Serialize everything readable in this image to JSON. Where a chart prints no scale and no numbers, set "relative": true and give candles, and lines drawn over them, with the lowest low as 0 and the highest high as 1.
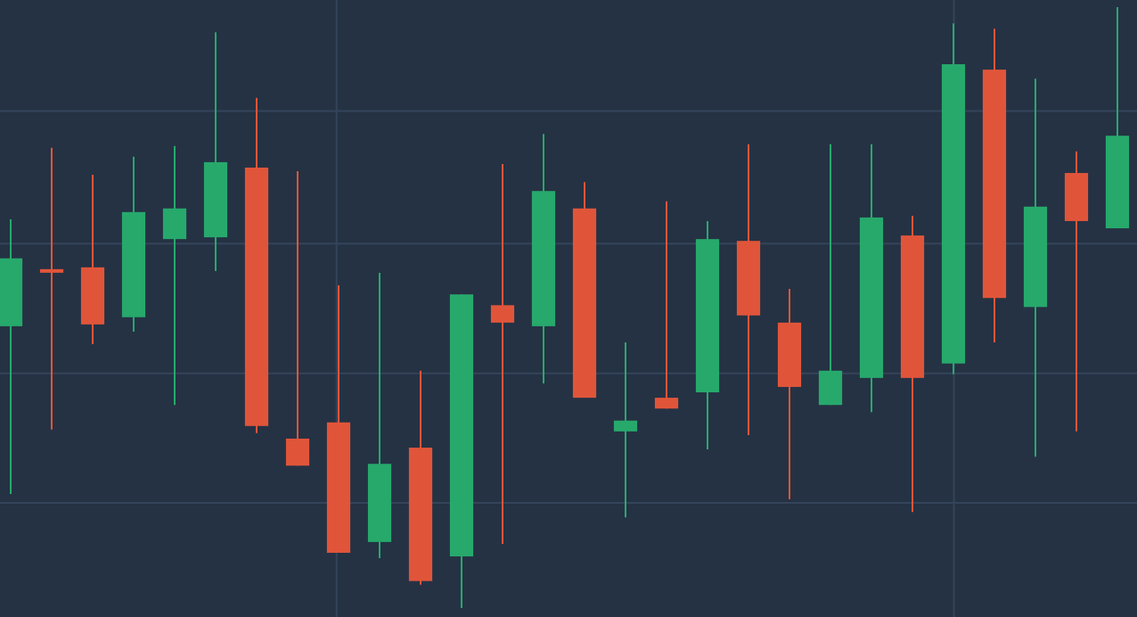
{
  "chart_data": {
    "type": "candlestick",
    "relative": true,
    "grid": true,
    "categories": [
      null,
      null,
      null,
      null,
      null,
      null,
      null,
      null,
      null,
      null,
      null,
      null,
      null,
      null,
      null,
      null,
      null,
      null,
      null,
      null,
      null,
      null,
      null,
      null,
      null,
      null,
      null,
      null
    ],
    "ohlc": [
      [
        0.469,
        0.647,
        0.19,
        0.582
      ],
      [
        0.564,
        0.766,
        0.297,
        0.558
      ],
      [
        0.567,
        0.721,
        0.439,
        0.472
      ],
      [
        0.484,
        0.751,
        0.46,
        0.659
      ],
      [
        0.614,
        0.769,
        0.338,
        0.665
      ],
      [
        0.617,
        0.958,
        0.561,
        0.742
      ],
      [
        0.733,
        0.849,
        0.291,
        0.303
      ],
      [
        0.282,
        0.727,
        0.237,
        0.237
      ],
      [
        0.309,
        0.537,
        0.092,
        0.092
      ],
      [
        0.11,
        0.558,
        0.083,
        0.24
      ],
      [
        0.267,
        0.395,
        0.039,
        0.045
      ],
      [
        0.086,
        0.522,
        0,
        0.522
      ],
      [
        0.504,
        0.739,
        0.107,
        0.475
      ],
      [
        0.469,
        0.789,
        0.374,
        0.694
      ],
      [
        0.665,
        0.709,
        0.35,
        0.35
      ],
      [
        0.294,
        0.442,
        0.151,
        0.312
      ],
      [
        0.35,
        0.677,
        0.332,
        0.332
      ],
      [
        0.359,
        0.644,
        0.264,
        0.614
      ],
      [
        0.611,
        0.772,
        0.288,
        0.487
      ],
      [
        0.475,
        0.531,
        0.181,
        0.368
      ],
      [
        0.338,
        0.772,
        0.338,
        0.395
      ],
      [
        0.383,
        0.772,
        0.326,
        0.65
      ],
      [
        0.62,
        0.653,
        0.16,
        0.383
      ],
      [
        0.407,
        0.973,
        0.389,
        0.905
      ],
      [
        0.896,
        0.964,
        0.442,
        0.516
      ],
      [
        0.501,
        0.881,
        0.252,
        0.668
      ],
      [
        0.724,
        0.76,
        0.294,
        0.644
      ],
      [
        0.632,
        1,
        0.632,
        0.786
      ]
    ],
    "colors": [
      "#27a96c",
      "#e0553a",
      "#e0553a",
      "#27a96c",
      "#27a96c",
      "#27a96c",
      "#e0553a",
      "#e0553a",
      "#e0553a",
      "#27a96c",
      "#e0553a",
      "#27a96c",
      "#e0553a",
      "#27a96c",
      "#e0553a",
      "#27a96c",
      "#e0553a",
      "#27a96c",
      "#e0553a",
      "#e0553a",
      "#27a96c",
      "#27a96c",
      "#e0553a",
      "#27a96c",
      "#e0553a",
      "#27a96c",
      "#e0553a",
      "#27a96c"
    ]
  }
}
